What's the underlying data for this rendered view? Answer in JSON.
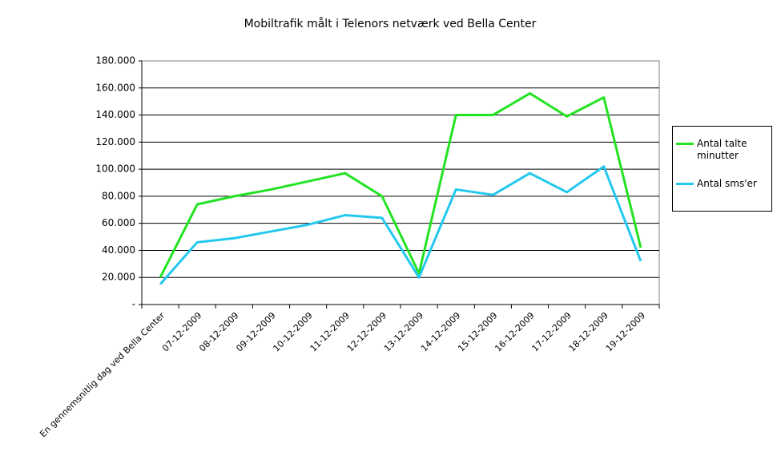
{
  "chart_data": {
    "type": "line",
    "title": "Mobiltrafik målt i Telenors netværk ved Bella Center",
    "categories": [
      "En gennemsnitlig dag ved Bella Center",
      "07-12-2009",
      "08-12-2009",
      "09-12-2009",
      "10-12-2009",
      "11-12-2009",
      "12-12-2009",
      "13-12-2009",
      "14-12-2009",
      "15-12-2009",
      "16-12-2009",
      "17-12-2009",
      "18-12-2009",
      "19-12-2009"
    ],
    "series": [
      {
        "name": "Antal talte minutter",
        "color": "#22e322",
        "values": [
          20000,
          74000,
          80000,
          85000,
          91000,
          97000,
          80000,
          23000,
          140000,
          140000,
          156000,
          139000,
          153000,
          42000
        ]
      },
      {
        "name": "Antal sms'er",
        "color": "#22c8ee",
        "values": [
          15000,
          46000,
          49000,
          54000,
          59000,
          66000,
          64000,
          20000,
          85000,
          81000,
          97000,
          83000,
          102000,
          32000
        ]
      }
    ],
    "ylim": [
      0,
      180000
    ],
    "yticks": [
      {
        "value": 0,
        "label": "-"
      },
      {
        "value": 20000,
        "label": "20.000"
      },
      {
        "value": 40000,
        "label": "40.000"
      },
      {
        "value": 60000,
        "label": "60.000"
      },
      {
        "value": 80000,
        "label": "80.000"
      },
      {
        "value": 100000,
        "label": "100.000"
      },
      {
        "value": 120000,
        "label": "120.000"
      },
      {
        "value": 140000,
        "label": "140.000"
      },
      {
        "value": 160000,
        "label": "160.000"
      },
      {
        "value": 180000,
        "label": "180.000"
      }
    ],
    "grid": true,
    "legend": "right"
  }
}
